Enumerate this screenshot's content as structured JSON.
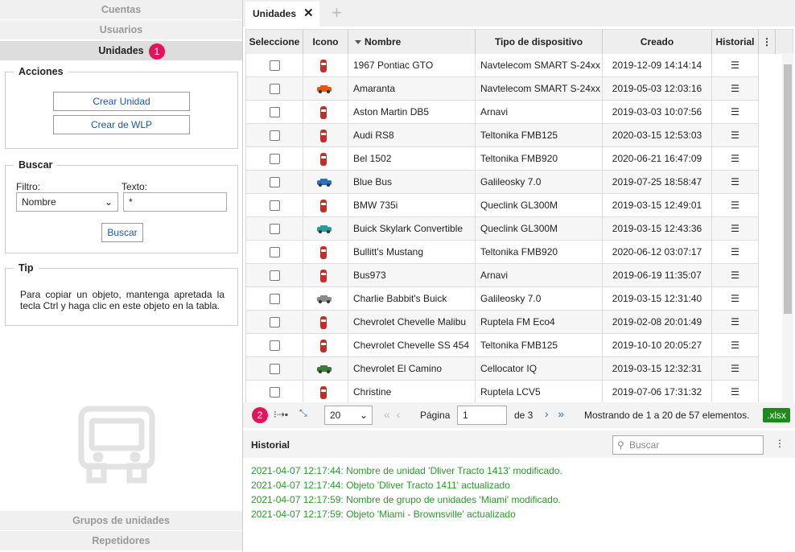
{
  "sidebar": {
    "tabs": [
      "Cuentas",
      "Usuarios",
      "Unidades"
    ],
    "badge": "1",
    "bottom_tabs": [
      "Grupos de unidades",
      "Repetidores"
    ]
  },
  "acciones": {
    "title": "Acciones",
    "buttons": [
      "Crear Unidad",
      "Crear de WLP"
    ]
  },
  "buscar": {
    "title": "Buscar",
    "filter_label": "Filtro:",
    "filter_value": "Nombre",
    "text_label": "Texto:",
    "text_value": "*",
    "button": "Buscar"
  },
  "tip": {
    "title": "Tip",
    "text": "Para copiar un objeto, mantenga apretada la tecla Ctrl y haga clic en este objeto en la tabla."
  },
  "tab": {
    "title": "Unidades"
  },
  "table": {
    "columns": [
      "Seleccione",
      "Icono",
      "Nombre",
      "Tipo de dispositivo",
      "Creado",
      "Historial"
    ],
    "rows": [
      [
        "1967 Pontiac GTO",
        "Navtelecom SMART S-24xx",
        "2019-12-09 14:14:14"
      ],
      [
        "Amaranta",
        "Navtelecom SMART S-24xx",
        "2019-05-03 12:03:16"
      ],
      [
        "Aston Martin DB5",
        "Arnavi",
        "2019-03-03 10:07:56"
      ],
      [
        "Audi RS8",
        "Teltonika FMB125",
        "2020-03-15 12:53:03"
      ],
      [
        "Bel 1502",
        "Teltonika FMB920",
        "2020-06-21 16:47:09"
      ],
      [
        "Blue Bus",
        "Galileosky 7.0",
        "2019-07-25 18:58:47"
      ],
      [
        "BMW 735i",
        "Queclink GL300M",
        "2019-03-15 12:49:01"
      ],
      [
        "Buick Skylark Convertible",
        "Queclink GL300M",
        "2019-03-15 12:43:36"
      ],
      [
        "Bullitt's Mustang",
        "Teltonika FMB920",
        "2020-06-12 03:07:17"
      ],
      [
        "Bus973",
        "Arnavi",
        "2019-06-19 11:35:07"
      ],
      [
        "Charlie Babbit's Buick",
        "Galileosky 7.0",
        "2019-03-15 12:31:40"
      ],
      [
        "Chevrolet Chevelle Malibu",
        "Ruptela FM Eco4",
        "2019-02-08 20:01:49"
      ],
      [
        "Chevrolet Chevelle SS 454",
        "Teltonika FMB125",
        "2019-10-10 20:05:27"
      ],
      [
        "Chevrolet El Camino",
        "Cellocator IQ",
        "2019-03-15 12:32:31"
      ],
      [
        "Christine",
        "Ruptela LCV5",
        "2019-07-06 17:31:32"
      ]
    ]
  },
  "pager": {
    "badge": "2",
    "page_size": "20",
    "page_label": "Página",
    "page": "1",
    "of": "de 3",
    "summary": "Mostrando de 1 a 20 de 57 elementos.",
    "export": ".xlsx"
  },
  "historial": {
    "title": "Historial",
    "search_placeholder": "Buscar",
    "log": [
      "2021-04-07 12:17:44: Nombre de unidad 'Dliver Tracto 1413' modificado.",
      "2021-04-07 12:17:44: Objeto 'Dliver Tracto 1411' actualizado",
      "2021-04-07 12:17:59: Nombre de grupo de unidades 'Miami' modificado.",
      "2021-04-07 12:17:59: Objeto 'Miami - Brownsville' actualizado"
    ]
  }
}
